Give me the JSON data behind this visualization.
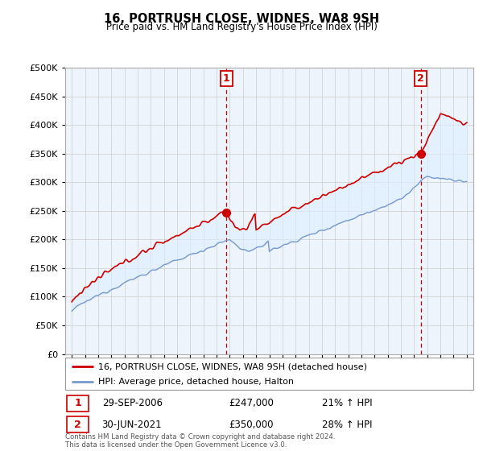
{
  "title": "16, PORTRUSH CLOSE, WIDNES, WA8 9SH",
  "subtitle": "Price paid vs. HM Land Registry's House Price Index (HPI)",
  "legend_line1": "16, PORTRUSH CLOSE, WIDNES, WA8 9SH (detached house)",
  "legend_line2": "HPI: Average price, detached house, Halton",
  "annotation1_date": "29-SEP-2006",
  "annotation1_price": "£247,000",
  "annotation1_hpi": "21% ↑ HPI",
  "annotation2_date": "30-JUN-2021",
  "annotation2_price": "£350,000",
  "annotation2_hpi": "28% ↑ HPI",
  "footer": "Contains HM Land Registry data © Crown copyright and database right 2024.\nThis data is licensed under the Open Government Licence v3.0.",
  "vline1_x": 2006.75,
  "vline2_x": 2021.5,
  "sale1_x": 2006.75,
  "sale1_y": 247000,
  "sale2_x": 2021.5,
  "sale2_y": 350000,
  "ylim": [
    0,
    500000
  ],
  "xlim": [
    1994.5,
    2025.5
  ],
  "red_color": "#cc0000",
  "blue_color": "#7799cc",
  "fill_color": "#ddeeff",
  "vline_color": "#cc0000",
  "background_color": "#ffffff",
  "grid_color": "#cccccc"
}
